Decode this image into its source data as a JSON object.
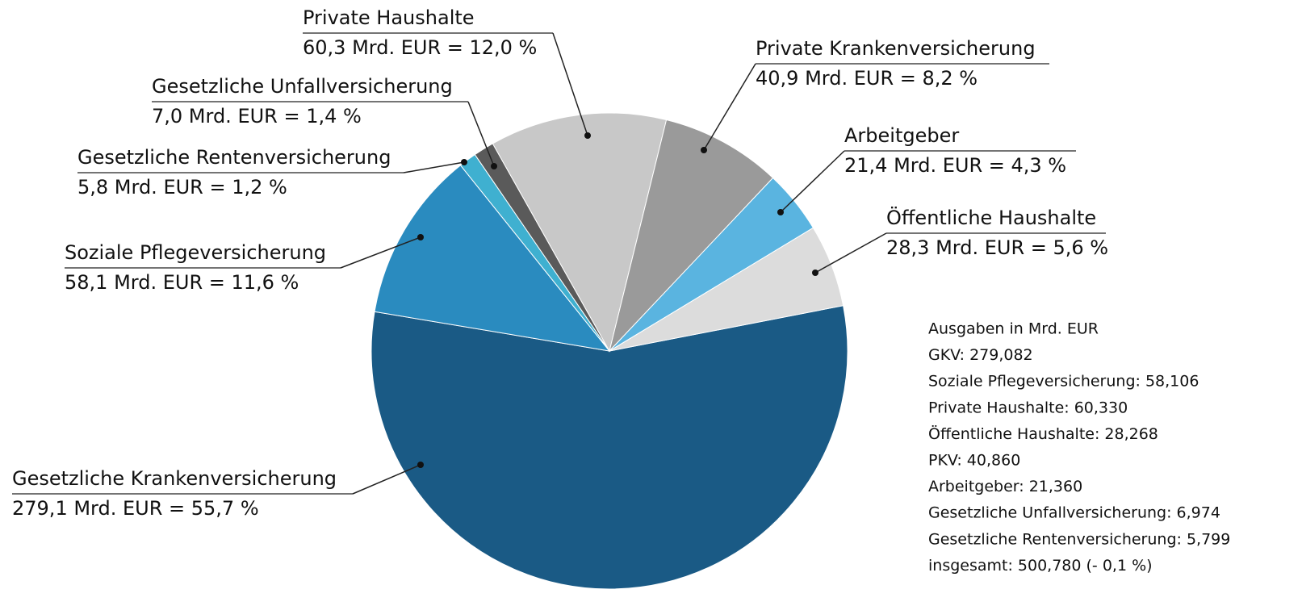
{
  "chart_data": {
    "type": "pie",
    "categories": [
      "Gesetzliche Krankenversicherung",
      "Soziale Pflegeversicherung",
      "Gesetzliche Rentenversicherung",
      "Gesetzliche Unfallversicherung",
      "Private Haushalte",
      "Private Krankenversicherung",
      "Arbeitgeber",
      "Öffentliche Haushalte"
    ],
    "values": [
      55.7,
      11.6,
      1.2,
      1.4,
      12.0,
      8.2,
      4.3,
      5.6
    ],
    "value_labels": [
      "279,1 Mrd. EUR = 55,7 %",
      "58,1 Mrd. EUR = 11,6 %",
      "5,8 Mrd. EUR = 1,2 %",
      "7,0 Mrd. EUR = 1,4 %",
      "60,3 Mrd. EUR = 12,0 %",
      "40,9 Mrd. EUR = 8,2 %",
      "21,4 Mrd. EUR = 4,3 %",
      "28,3 Mrd. EUR = 5,6 %"
    ],
    "colors": [
      "#1a5a85",
      "#2a8bbf",
      "#3fb0d0",
      "#5a5a5a",
      "#c8c8c8",
      "#9a9a9a",
      "#5ab4e0",
      "#dcdcdc"
    ],
    "annotation": [
      "Ausgaben in Mrd. EUR",
      "GKV: 279,082",
      "Soziale Pflegeversicherung:  58,106",
      "Private Haushalte: 60,330",
      "Öffentliche Haushalte: 28,268",
      "PKV: 40,860",
      "Arbeitgeber: 21,360",
      "Gesetzliche  Unfallversicherung: 6,974",
      "Gesetzliche  Rentenversicherung: 5,799",
      "insgesamt: 500,780 (- 0,1 %)"
    ]
  }
}
